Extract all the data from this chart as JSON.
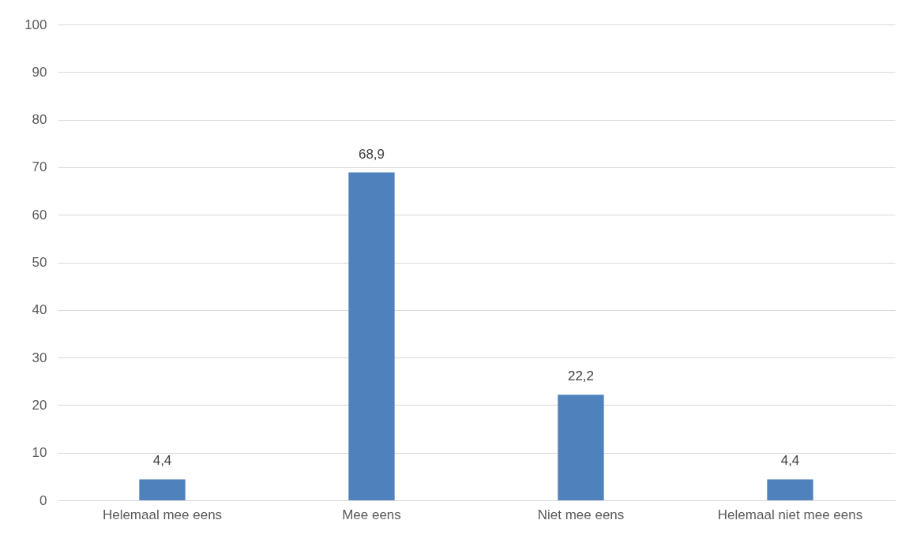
{
  "chart_data": {
    "type": "bar",
    "categories": [
      "Helemaal mee eens",
      "Mee eens",
      "Niet mee eens",
      "Helemaal niet mee eens"
    ],
    "values": [
      4.4,
      68.9,
      22.2,
      4.4
    ],
    "value_labels": [
      "4,4",
      "68,9",
      "22,2",
      "4,4"
    ],
    "color": "#4f81bd",
    "ylim": [
      0,
      100
    ],
    "yticks": [
      0,
      10,
      20,
      30,
      40,
      50,
      60,
      70,
      80,
      90,
      100
    ],
    "grid": "y"
  }
}
